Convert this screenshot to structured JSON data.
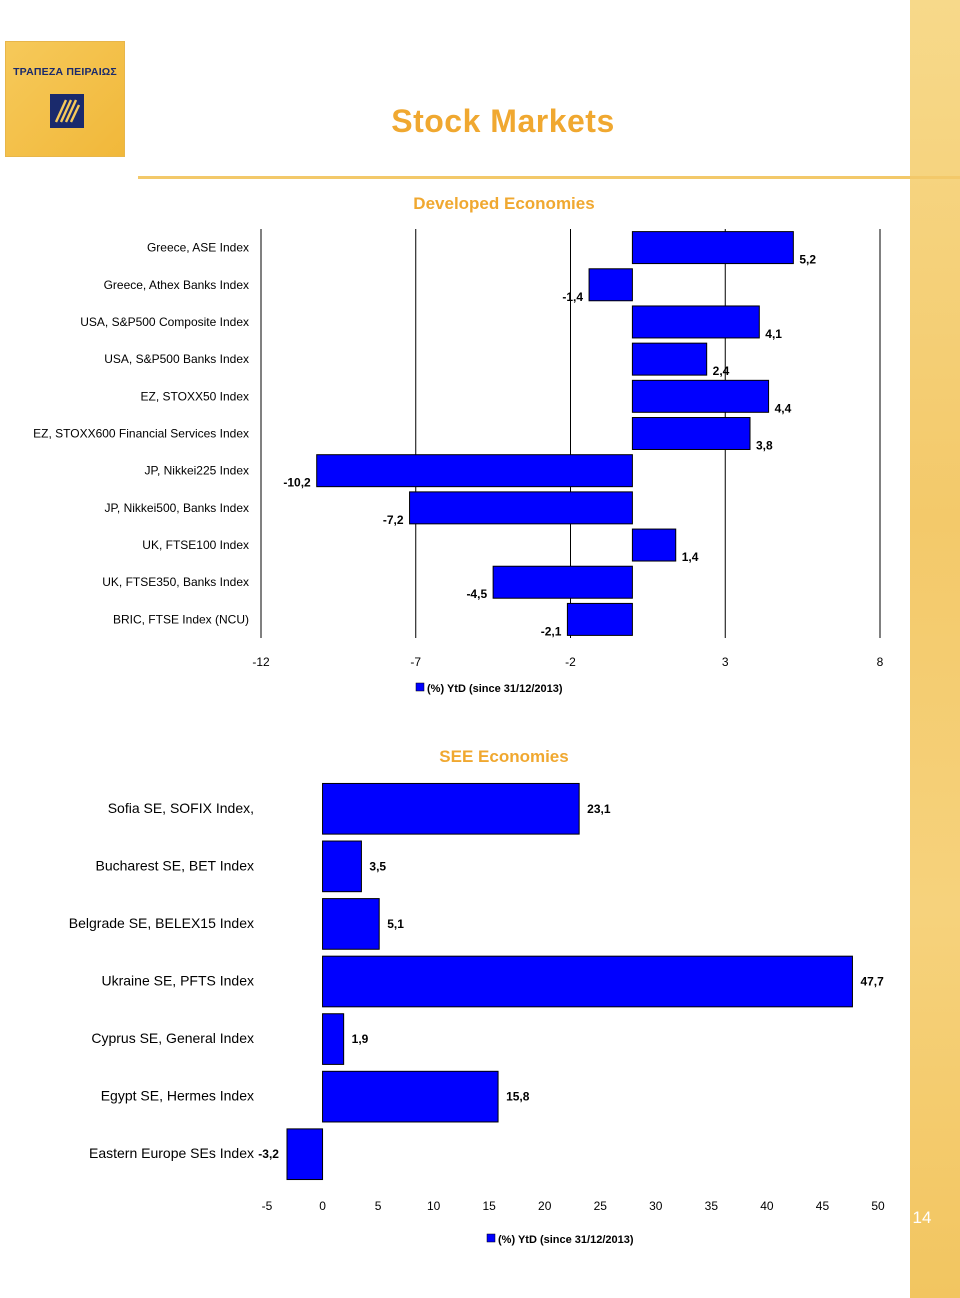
{
  "page": {
    "title": "Stock Markets",
    "page_number": "14",
    "logo_text": "ΤΡΑΠΕΖΑ ΠΕΙΡΑΙΩΣ",
    "colors": {
      "bar": "#0000ff",
      "bar_border": "#000000",
      "accent": "#f0a830",
      "side_strip": "#f3c96a"
    }
  },
  "chart_data": [
    {
      "type": "bar",
      "orientation": "horizontal",
      "title": "Developed Economies",
      "categories": [
        "Greece, ASE Index",
        "Greece, Athex Banks Index",
        "USA, S&P500 Composite Index",
        "USA, S&P500 Banks Index",
        "EZ, STOXX50 Index",
        "EZ, STOXX600 Financial Services Index",
        "JP, Nikkei225 Index",
        "JP, Nikkei500, Banks Index",
        "UK, FTSE100 Index",
        "UK, FTSE350, Banks Index",
        "BRIC, FTSE Index (NCU)"
      ],
      "series": [
        {
          "name": "(%) YtD (since 31/12/2013)",
          "values": [
            5.2,
            -1.4,
            4.1,
            2.4,
            4.4,
            3.8,
            -10.2,
            -7.2,
            1.4,
            -4.5,
            -2.1
          ],
          "labels": [
            "5,2",
            "-1,4",
            "4,1",
            "2,4",
            "4,4",
            "3,8",
            "-10,2",
            "-7,2",
            "1,4",
            "-4,5",
            "-2,1"
          ]
        }
      ],
      "xlim": [
        -12,
        8
      ],
      "xticks": [
        "-12",
        "-7",
        "-2",
        "3",
        "8"
      ],
      "grid": true,
      "legend": "bottom"
    },
    {
      "type": "bar",
      "orientation": "horizontal",
      "title": "SEE Economies",
      "categories": [
        "Sofia SE, SOFIX Index,",
        "Bucharest SE, BET Index",
        "Belgrade SE, BELEX15 Index",
        "Ukraine SE, PFTS Index",
        "Cyprus SE, General Index",
        "Egypt SE, Hermes Index",
        "Eastern Europe SEs Index"
      ],
      "series": [
        {
          "name": "(%) YtD (since 31/12/2013)",
          "values": [
            23.1,
            3.5,
            5.1,
            47.7,
            1.9,
            15.8,
            -3.2
          ],
          "labels": [
            "23,1",
            "3,5",
            "5,1",
            "47,7",
            "1,9",
            "15,8",
            "-3,2"
          ]
        }
      ],
      "xlim": [
        -5,
        50
      ],
      "xticks": [
        "-5",
        "0",
        "5",
        "10",
        "15",
        "20",
        "25",
        "30",
        "35",
        "40",
        "45",
        "50"
      ],
      "grid": false,
      "legend": "bottom"
    }
  ]
}
